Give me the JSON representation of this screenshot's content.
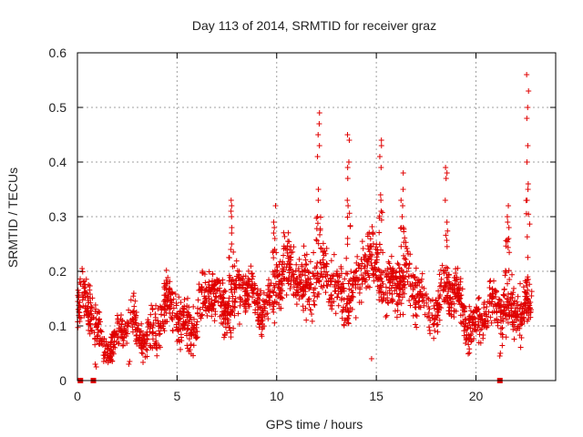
{
  "chart_data": {
    "type": "scatter",
    "title": "Day 113 of 2014, SRMTID for receiver graz",
    "xlabel": "GPS time / hours",
    "ylabel": "SRMTID / TECUs",
    "xlim": [
      0,
      24
    ],
    "ylim": [
      0,
      0.6
    ],
    "x_ticks": [
      0,
      5,
      10,
      15,
      20
    ],
    "x_tick_labels": [
      "0",
      "5",
      "10",
      "15",
      "20"
    ],
    "y_ticks": [
      0,
      0.1,
      0.2,
      0.3,
      0.4,
      0.5,
      0.6
    ],
    "y_tick_labels": [
      "0",
      "0.1",
      "0.2",
      "0.3",
      "0.4",
      "0.5",
      "0.6"
    ],
    "grid": true,
    "marker": "+",
    "color": "#e00000",
    "zero_markers_x": [
      0.15,
      0.8,
      21.2
    ],
    "trend": [
      {
        "x": 0.0,
        "mean": 0.13,
        "spread": 0.05
      },
      {
        "x": 0.5,
        "mean": 0.12,
        "spread": 0.05
      },
      {
        "x": 1.0,
        "mean": 0.08,
        "spread": 0.035
      },
      {
        "x": 2.0,
        "mean": 0.08,
        "spread": 0.035
      },
      {
        "x": 3.0,
        "mean": 0.09,
        "spread": 0.04
      },
      {
        "x": 4.0,
        "mean": 0.11,
        "spread": 0.045
      },
      {
        "x": 5.0,
        "mean": 0.12,
        "spread": 0.045
      },
      {
        "x": 6.0,
        "mean": 0.12,
        "spread": 0.045
      },
      {
        "x": 7.0,
        "mean": 0.15,
        "spread": 0.05
      },
      {
        "x": 8.0,
        "mean": 0.17,
        "spread": 0.05
      },
      {
        "x": 9.0,
        "mean": 0.13,
        "spread": 0.04
      },
      {
        "x": 10.0,
        "mean": 0.19,
        "spread": 0.05
      },
      {
        "x": 11.0,
        "mean": 0.18,
        "spread": 0.05
      },
      {
        "x": 12.0,
        "mean": 0.2,
        "spread": 0.06
      },
      {
        "x": 13.0,
        "mean": 0.15,
        "spread": 0.05
      },
      {
        "x": 14.0,
        "mean": 0.19,
        "spread": 0.05
      },
      {
        "x": 15.0,
        "mean": 0.2,
        "spread": 0.05
      },
      {
        "x": 16.0,
        "mean": 0.19,
        "spread": 0.05
      },
      {
        "x": 17.0,
        "mean": 0.15,
        "spread": 0.05
      },
      {
        "x": 18.0,
        "mean": 0.15,
        "spread": 0.05
      },
      {
        "x": 19.0,
        "mean": 0.14,
        "spread": 0.045
      },
      {
        "x": 20.0,
        "mean": 0.12,
        "spread": 0.04
      },
      {
        "x": 21.0,
        "mean": 0.11,
        "spread": 0.04
      },
      {
        "x": 21.5,
        "mean": 0.16,
        "spread": 0.06
      },
      {
        "x": 22.0,
        "mean": 0.14,
        "spread": 0.05
      },
      {
        "x": 22.7,
        "mean": 0.11,
        "spread": 0.04
      }
    ],
    "peaks": [
      {
        "x": 7.7,
        "values": [
          0.33,
          0.32,
          0.31,
          0.3,
          0.28,
          0.27,
          0.25,
          0.24
        ]
      },
      {
        "x": 9.9,
        "values": [
          0.32,
          0.29,
          0.28,
          0.27,
          0.26,
          0.24
        ]
      },
      {
        "x": 12.1,
        "values": [
          0.49,
          0.47,
          0.45,
          0.43,
          0.41,
          0.35,
          0.33,
          0.3
        ]
      },
      {
        "x": 13.6,
        "values": [
          0.45,
          0.44,
          0.4,
          0.39,
          0.37,
          0.33,
          0.32
        ]
      },
      {
        "x": 15.2,
        "values": [
          0.44,
          0.43,
          0.41,
          0.39,
          0.34,
          0.33,
          0.31
        ]
      },
      {
        "x": 16.3,
        "values": [
          0.38,
          0.35,
          0.33,
          0.32,
          0.3,
          0.28
        ]
      },
      {
        "x": 18.5,
        "values": [
          0.39,
          0.38,
          0.37,
          0.33,
          0.29
        ]
      },
      {
        "x": 21.6,
        "values": [
          0.32,
          0.3,
          0.29,
          0.28,
          0.26
        ]
      },
      {
        "x": 22.6,
        "values": [
          0.56,
          0.53,
          0.5,
          0.48,
          0.43,
          0.4,
          0.36,
          0.35,
          0.33
        ]
      }
    ],
    "lows": [
      {
        "x": 0.9,
        "values": [
          0.03,
          0.025
        ]
      },
      {
        "x": 2.6,
        "values": [
          0.03,
          0.035
        ]
      },
      {
        "x": 14.8,
        "values": [
          0.04
        ]
      },
      {
        "x": 21.2,
        "values": [
          0.05,
          0.045
        ]
      }
    ],
    "generated_points": 2200,
    "x_range_data": [
      0,
      22.8
    ]
  }
}
